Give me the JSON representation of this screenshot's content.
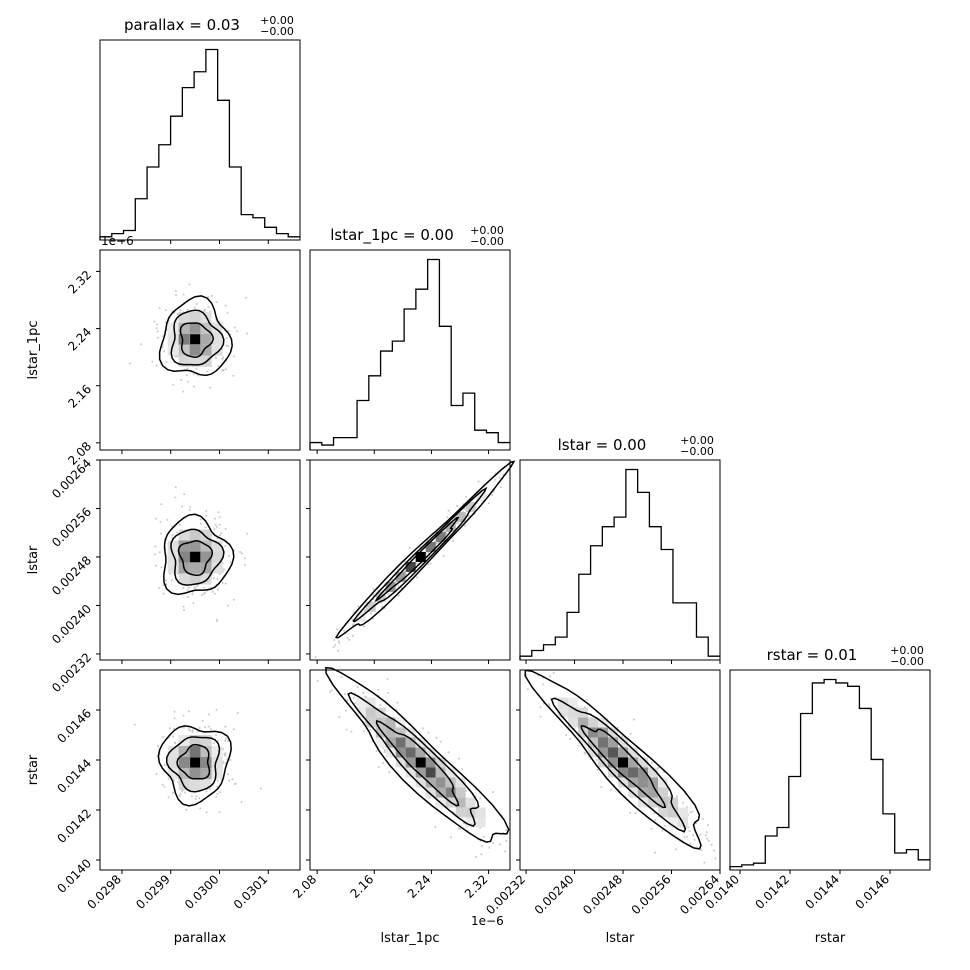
{
  "chart_data": {
    "type": "corner",
    "parameters": [
      "parallax",
      "lstar_1pc",
      "lstar",
      "rstar"
    ],
    "diag_titles": [
      {
        "text": "parallax = 0.03",
        "sup": "+0.00",
        "sub": "−0.00"
      },
      {
        "text": "lstar_1pc = 0.00",
        "sup": "+0.00",
        "sub": "−0.00"
      },
      {
        "text": "lstar = 0.00",
        "sup": "+0.00",
        "sub": "−0.00"
      },
      {
        "text": "rstar = 0.01",
        "sup": "+0.00",
        "sub": "−0.00"
      }
    ],
    "x_tick_labels": [
      [
        "0.0298",
        "0.0299",
        "0.0300",
        "0.0301"
      ],
      [
        "2.08",
        "2.16",
        "2.24",
        "2.32"
      ],
      [
        "0.00232",
        "0.00240",
        "0.00248",
        "0.00256",
        "0.00264"
      ],
      [
        "0.0140",
        "0.0142",
        "0.0144",
        "0.0146"
      ]
    ],
    "y_tick_labels": {
      "lstar_1pc": [
        "2.08",
        "2.16",
        "2.24",
        "2.32"
      ],
      "lstar": [
        "0.00232",
        "0.00240",
        "0.00248",
        "0.00256",
        "0.00264"
      ],
      "rstar": [
        "0.0140",
        "0.0142",
        "0.0144",
        "0.0146"
      ]
    },
    "offset_text": "1e−6",
    "ranges": {
      "parallax": [
        0.029755,
        0.030165
      ],
      "lstar_1pc": [
        2.07,
        2.35
      ],
      "lstar": [
        0.00231,
        0.00264
      ],
      "rstar": [
        0.01396,
        0.01476
      ]
    },
    "histograms": {
      "parallax": [
        1,
        2,
        3,
        13,
        23,
        30,
        39,
        48,
        53,
        60,
        44,
        23,
        8,
        7,
        4,
        2,
        1
      ],
      "lstar_1pc": [
        3,
        2,
        5,
        5,
        20,
        30,
        40,
        44,
        57,
        65,
        77,
        50,
        18,
        23,
        8,
        7,
        3
      ],
      "lstar": [
        2,
        5,
        8,
        12,
        25,
        45,
        60,
        70,
        75,
        100,
        88,
        70,
        58,
        30,
        30,
        12,
        2
      ],
      "rstar": [
        2,
        3,
        4,
        20,
        25,
        55,
        92,
        110,
        112,
        110,
        108,
        95,
        65,
        33,
        10,
        12,
        6
      ]
    },
    "pair_correlations": [
      {
        "x": "parallax",
        "y": "lstar_1pc",
        "rho": 0.0
      },
      {
        "x": "parallax",
        "y": "lstar",
        "rho": 0.0
      },
      {
        "x": "lstar_1pc",
        "y": "lstar",
        "rho": 0.99
      },
      {
        "x": "parallax",
        "y": "rstar",
        "rho": 0.0
      },
      {
        "x": "lstar_1pc",
        "y": "rstar",
        "rho": -0.8
      },
      {
        "x": "lstar",
        "y": "rstar",
        "rho": -0.8
      }
    ],
    "centers": {
      "parallax": 0.02995,
      "lstar_1pc": 2.225,
      "lstar": 0.00248,
      "rstar": 0.01439
    }
  }
}
